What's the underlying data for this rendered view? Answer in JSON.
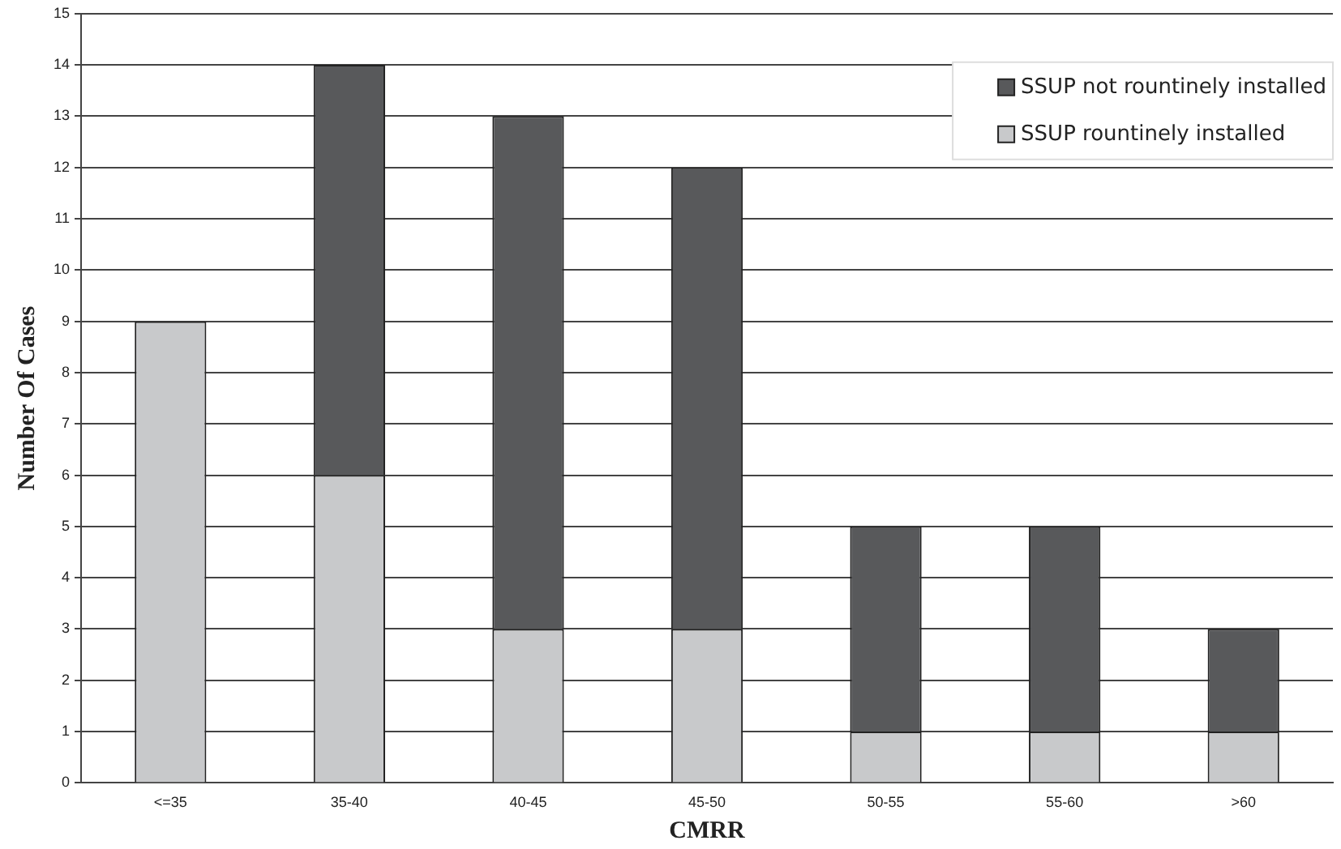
{
  "chart_data": {
    "type": "bar",
    "xlabel": "CMRR",
    "ylabel": "Number Of Cases",
    "stacked": true,
    "categories": [
      "<=35",
      "35-40",
      "40-45",
      "45-50",
      "50-55",
      "55-60",
      ">60"
    ],
    "series": [
      {
        "name": "SSUP rountinely installed",
        "color": "#c8c9cb",
        "values": [
          9,
          6,
          3,
          3,
          1,
          1,
          1
        ]
      },
      {
        "name": "SSUP not rountinely installed",
        "color": "#58595b",
        "values": [
          0,
          8,
          10,
          9,
          4,
          4,
          2
        ]
      }
    ],
    "ylim": [
      0,
      15
    ],
    "yticks": [
      0,
      1,
      2,
      3,
      4,
      5,
      6,
      7,
      8,
      9,
      10,
      11,
      12,
      13,
      14,
      15
    ],
    "grid": "y",
    "legend": "top right"
  }
}
